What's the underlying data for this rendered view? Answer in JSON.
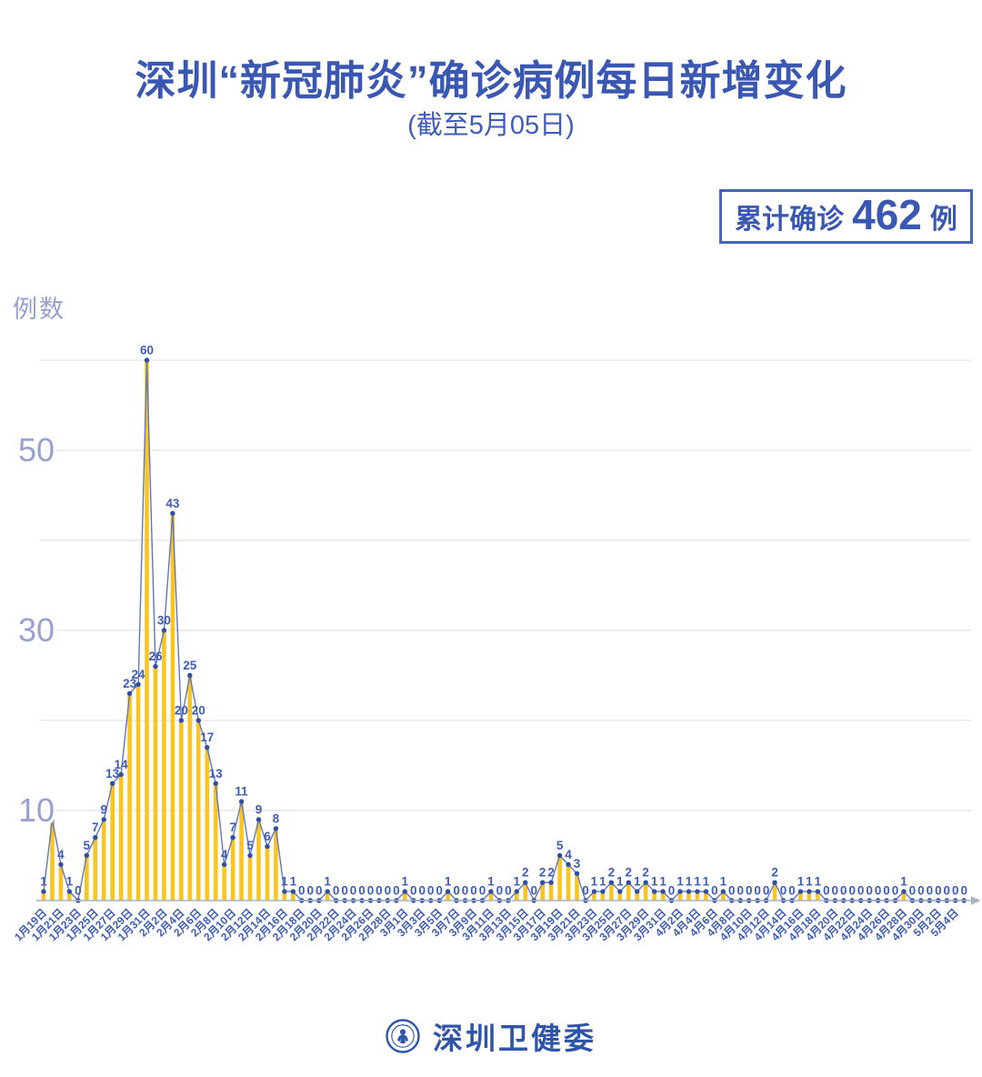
{
  "header": {
    "title": "深圳“新冠肺炎”确诊病例每日新增变化",
    "subtitle": "(截至5月05日)"
  },
  "badge": {
    "prefix": "累计确诊",
    "value": "462",
    "suffix": "例"
  },
  "footer": {
    "brand": "深圳卫健委"
  },
  "colors": {
    "title_blue": "#3A57B2",
    "label_blue": "#3E5DB5",
    "bar_yellow": "#FAC51E",
    "line_blue": "#5F77BE",
    "dot_blue": "#2E4FA5",
    "grid_gray": "#E2E4EA",
    "axis_gray": "#A9B2C4",
    "ytick_blue": "#99A2CF"
  },
  "chart_data": {
    "type": "bar",
    "overlay": "line-with-markers",
    "title": "深圳“新冠肺炎”确诊病例每日新增变化",
    "subtitle": "(截至5月05日)",
    "ylabel": "例数",
    "xlabel": "",
    "ylim": [
      0,
      62
    ],
    "gridlines": [
      10,
      20,
      30,
      40,
      50,
      60
    ],
    "yticks_labeled": [
      10,
      30,
      50
    ],
    "legend": "none",
    "x_labels_every_2_days": true,
    "x_labels": [
      "1月19日",
      "1月21日",
      "1月23日",
      "1月25日",
      "1月27日",
      "1月29日",
      "1月31日",
      "2月2日",
      "2月4日",
      "2月6日",
      "2月8日",
      "2月10日",
      "2月12日",
      "2月14日",
      "2月16日",
      "2月18日",
      "2月20日",
      "2月22日",
      "2月24日",
      "2月26日",
      "2月28日",
      "3月1日",
      "3月3日",
      "3月5日",
      "3月7日",
      "3月9日",
      "3月11日",
      "3月13日",
      "3月15日",
      "3月17日",
      "3月19日",
      "3月21日",
      "3月23日",
      "3月25日",
      "3月27日",
      "3月29日",
      "3月31日",
      "4月2日",
      "4月4日",
      "4月6日",
      "4月8日",
      "4月10日",
      "4月12日",
      "4月14日",
      "4月16日",
      "4月18日",
      "4月20日",
      "4月22日",
      "4月24日",
      "4月26日",
      "4月28日",
      "4月30日",
      "5月2日",
      "5月4日"
    ],
    "values": [
      1,
      9,
      4,
      1,
      0,
      5,
      7,
      9,
      13,
      14,
      23,
      24,
      60,
      26,
      30,
      43,
      20,
      25,
      20,
      17,
      13,
      4,
      7,
      11,
      5,
      9,
      6,
      8,
      1,
      1,
      0,
      0,
      0,
      1,
      0,
      0,
      0,
      0,
      0,
      0,
      0,
      0,
      1,
      0,
      0,
      0,
      0,
      1,
      0,
      0,
      0,
      0,
      1,
      0,
      0,
      1,
      2,
      0,
      2,
      2,
      5,
      4,
      3,
      0,
      1,
      1,
      2,
      1,
      2,
      1,
      2,
      1,
      1,
      0,
      1,
      1,
      1,
      1,
      0,
      1,
      0,
      0,
      0,
      0,
      0,
      2,
      0,
      0,
      1,
      1,
      1,
      0,
      0,
      0,
      0,
      0,
      0,
      0,
      0,
      0,
      1,
      0,
      0,
      0,
      0,
      0,
      0,
      0
    ],
    "total": 462
  }
}
